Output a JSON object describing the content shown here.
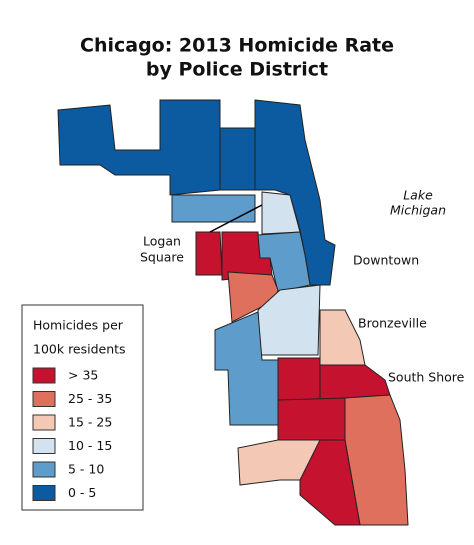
{
  "title": [
    "Chicago: 2013 Homicide Rate",
    "by Police District"
  ],
  "labels": {
    "lake": [
      "Lake",
      "Michigan"
    ],
    "logan_square": [
      "Logan",
      "Square"
    ],
    "downtown": "Downtown",
    "bronzeville": "Bronzeville",
    "south_shore": "South Shore"
  },
  "legend": {
    "title": [
      "Homicides per",
      "100k residents"
    ],
    "items": [
      {
        "label": "> 35",
        "color": "#c4122f"
      },
      {
        "label": "25 - 35",
        "color": "#e0705e"
      },
      {
        "label": "15 - 25",
        "color": "#f3c9b6"
      },
      {
        "label": "10 - 15",
        "color": "#d2e3ef"
      },
      {
        "label": "5 - 10",
        "color": "#5e9dcb"
      },
      {
        "label": "0 - 5",
        "color": "#0c5aa0"
      }
    ]
  }
}
